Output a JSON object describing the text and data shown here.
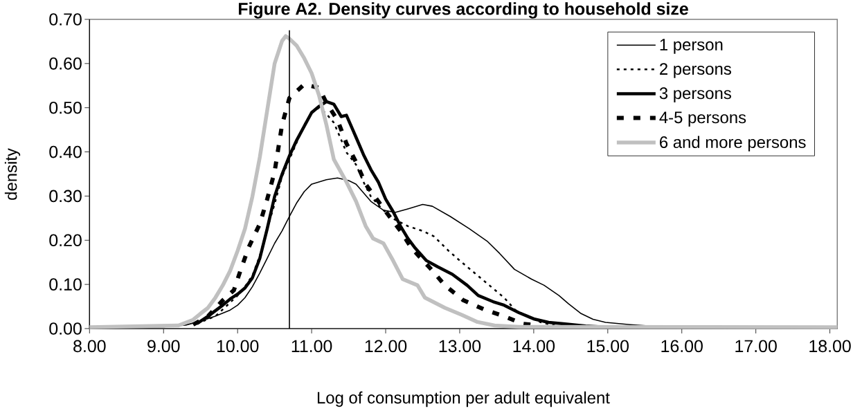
{
  "chart_data": {
    "type": "line",
    "title": "Figure A2. Density curves according to household size",
    "xlabel": "Log of consumption per adult equivalent",
    "ylabel": "density",
    "xlim": [
      8,
      18.1
    ],
    "ylim": [
      0,
      0.7
    ],
    "xticks": [
      {
        "value": 8,
        "label": "8.00"
      },
      {
        "value": 9,
        "label": "9.00"
      },
      {
        "value": 10,
        "label": "10.00"
      },
      {
        "value": 11,
        "label": "11.00"
      },
      {
        "value": 12,
        "label": "12.00"
      },
      {
        "value": 13,
        "label": "13.00"
      },
      {
        "value": 14,
        "label": "14.00"
      },
      {
        "value": 15,
        "label": "15.00"
      },
      {
        "value": 16,
        "label": "16.00"
      },
      {
        "value": 17,
        "label": "17.00"
      },
      {
        "value": 18,
        "label": "18.00"
      }
    ],
    "yticks": [
      {
        "value": 0,
        "label": "0.00"
      },
      {
        "value": 0.1,
        "label": "0.10"
      },
      {
        "value": 0.2,
        "label": "0.20"
      },
      {
        "value": 0.3,
        "label": "0.30"
      },
      {
        "value": 0.4,
        "label": "0.40"
      },
      {
        "value": 0.5,
        "label": "0.50"
      },
      {
        "value": 0.6,
        "label": "0.60"
      },
      {
        "value": 0.7,
        "label": "0.70"
      }
    ],
    "legend": "top right",
    "marker": "none",
    "ref_lines": [
      {
        "axis": "x",
        "value": 10.7,
        "color": "#000000"
      }
    ],
    "series": [
      {
        "name": "1 person",
        "color": "#000000",
        "line_style": "solid",
        "x": [
          8.3,
          9.0,
          9.3,
          9.5,
          9.7,
          9.9,
          10.0,
          10.1,
          10.2,
          10.3,
          10.4,
          10.5,
          10.6,
          10.7,
          10.8,
          10.9,
          11.0,
          11.2,
          11.35,
          11.5,
          11.6,
          11.8,
          11.97,
          12.13,
          12.3,
          12.5,
          12.63,
          12.87,
          13.13,
          13.37,
          13.54,
          13.74,
          13.97,
          14.14,
          14.34,
          14.47,
          14.64,
          14.8,
          14.97,
          15.3,
          15.67,
          16.0
        ],
        "values": [
          0.003,
          0.004,
          0.008,
          0.017,
          0.028,
          0.042,
          0.053,
          0.07,
          0.095,
          0.126,
          0.159,
          0.193,
          0.221,
          0.254,
          0.285,
          0.31,
          0.327,
          0.337,
          0.341,
          0.335,
          0.327,
          0.288,
          0.268,
          0.263,
          0.271,
          0.281,
          0.277,
          0.254,
          0.226,
          0.198,
          0.17,
          0.134,
          0.112,
          0.098,
          0.075,
          0.056,
          0.034,
          0.021,
          0.014,
          0.009,
          null,
          0.001
        ]
      },
      {
        "name": "2 persons",
        "color": "#000000",
        "line_style": "dotted",
        "x": [
          9.45,
          9.7,
          9.9,
          10.0,
          10.1,
          10.2,
          10.3,
          10.4,
          10.5,
          10.6,
          10.7,
          10.8,
          10.9,
          11.0,
          11.1,
          11.2,
          11.3,
          11.4,
          11.47,
          11.6,
          11.7,
          11.8,
          11.95,
          12.1,
          12.3,
          12.5,
          12.65,
          12.85,
          13.0,
          13.2,
          13.4,
          13.6,
          13.75,
          13.95,
          14.1,
          14.3
        ],
        "values": [
          0.011,
          0.028,
          0.059,
          0.075,
          0.095,
          0.12,
          0.165,
          0.226,
          0.282,
          0.344,
          0.383,
          0.422,
          0.461,
          0.489,
          0.5,
          0.486,
          0.466,
          0.427,
          0.399,
          0.371,
          0.332,
          0.299,
          0.271,
          0.249,
          0.232,
          0.221,
          0.209,
          0.176,
          0.154,
          0.126,
          0.098,
          0.07,
          0.042,
          0.025,
          0.014,
          0.006
        ]
      },
      {
        "name": "3 persons",
        "color": "#000000",
        "line_style": "solid",
        "x": [
          9.45,
          9.6,
          9.8,
          9.9,
          10.0,
          10.1,
          10.2,
          10.3,
          10.4,
          10.5,
          10.6,
          10.7,
          10.8,
          10.9,
          11.0,
          11.1,
          11.2,
          11.3,
          11.4,
          11.47,
          11.6,
          11.7,
          11.8,
          11.9,
          12.0,
          12.1,
          12.2,
          12.3,
          12.4,
          12.55,
          12.7,
          12.9,
          13.1,
          13.25,
          13.45,
          13.6,
          13.8,
          14.0,
          14.2,
          14.4,
          14.7,
          15.0
        ],
        "values": [
          0.011,
          0.028,
          0.053,
          0.067,
          0.078,
          0.092,
          0.115,
          0.159,
          0.226,
          0.299,
          0.349,
          0.391,
          0.427,
          0.458,
          0.489,
          0.503,
          0.514,
          0.508,
          0.48,
          0.483,
          0.433,
          0.394,
          0.36,
          0.332,
          0.293,
          0.265,
          0.232,
          0.204,
          0.182,
          0.154,
          0.14,
          0.123,
          0.098,
          0.075,
          0.061,
          0.053,
          0.036,
          0.022,
          0.014,
          0.011,
          0.006,
          0.003
        ]
      },
      {
        "name": "4-5 persons",
        "color": "#000000",
        "line_style": "dashed",
        "x": [
          9.4,
          9.6,
          9.8,
          9.95,
          10.05,
          10.15,
          10.3,
          10.4,
          10.5,
          10.6,
          10.7,
          10.9,
          11.1,
          11.2,
          11.35,
          11.47,
          11.6,
          11.73,
          11.9,
          12.05,
          12.2,
          12.35,
          12.6,
          12.8,
          13.05,
          13.35,
          13.6,
          13.85,
          14.05
        ],
        "values": [
          0.009,
          0.028,
          0.064,
          0.087,
          0.137,
          0.184,
          0.237,
          0.293,
          0.355,
          0.461,
          0.522,
          0.553,
          0.545,
          0.511,
          0.472,
          0.419,
          0.377,
          0.327,
          0.288,
          0.254,
          0.221,
          0.182,
          0.137,
          0.098,
          0.064,
          0.042,
          0.028,
          0.011,
          0.007
        ]
      },
      {
        "name": "6 and more persons",
        "color": "#c0c0c0",
        "line_style": "solid",
        "x": [
          8.0,
          9.2,
          9.4,
          9.5,
          9.6,
          9.7,
          9.8,
          9.9,
          10.0,
          10.1,
          10.2,
          10.3,
          10.4,
          10.5,
          10.6,
          10.65,
          10.7,
          10.8,
          10.9,
          11.0,
          11.1,
          11.2,
          11.3,
          11.47,
          11.6,
          11.73,
          11.83,
          11.97,
          12.1,
          12.23,
          12.43,
          12.53,
          12.8,
          13.03,
          13.24,
          13.47,
          13.8,
          18.1
        ],
        "values": [
          0.003,
          0.007,
          0.02,
          0.034,
          0.047,
          0.07,
          0.098,
          0.131,
          0.176,
          0.226,
          0.299,
          0.388,
          0.494,
          0.6,
          0.651,
          0.662,
          0.656,
          0.64,
          0.612,
          0.578,
          0.528,
          0.461,
          0.383,
          0.332,
          0.288,
          0.232,
          0.204,
          0.193,
          0.154,
          0.112,
          0.098,
          0.07,
          0.047,
          0.031,
          0.015,
          0.007,
          0.004,
          0.003
        ]
      }
    ]
  }
}
